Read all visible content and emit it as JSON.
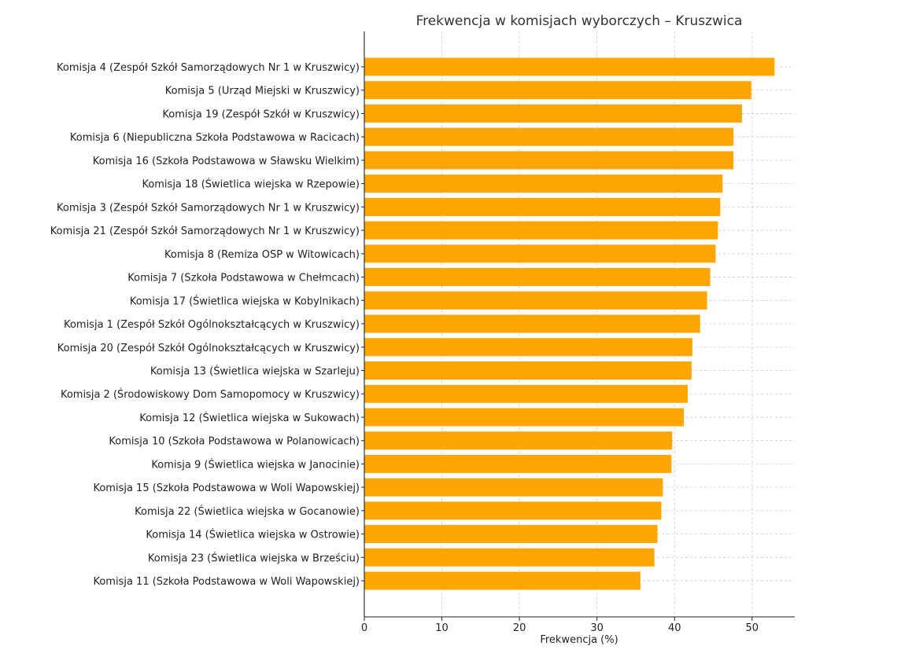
{
  "chart_data": {
    "type": "bar",
    "orientation": "horizontal",
    "title": "Frekwencja w komisjach wyborczych – Kruszwica",
    "xlabel": "Frekwencja (%)",
    "ylabel": "",
    "xlim": [
      0,
      55.5
    ],
    "xticks": [
      0,
      10,
      20,
      30,
      40,
      50
    ],
    "grid": true,
    "bar_color": "#FFA500",
    "categories": [
      "Komisja 4 (Zespół Szkół Samorządowych Nr 1 w Kruszwicy)",
      "Komisja 5 (Urząd Miejski w Kruszwicy)",
      "Komisja 19 (Zespół Szkół w Kruszwicy)",
      "Komisja 6 (Niepubliczna Szkoła Podstawowa w Racicach)",
      "Komisja 16 (Szkoła Podstawowa w Sławsku Wielkim)",
      "Komisja 18 (Świetlica wiejska w Rzepowie)",
      "Komisja 3 (Zespół Szkół Samorządowych Nr 1 w Kruszwicy)",
      "Komisja 21 (Zespół Szkół Samorządowych Nr 1 w Kruszwicy)",
      "Komisja 8 (Remiza OSP w Witowicach)",
      "Komisja 7 (Szkoła Podstawowa w Chełmcach)",
      "Komisja 17 (Świetlica wiejska w Kobylnikach)",
      "Komisja 1 (Zespół Szkół Ogólnokształcących w Kruszwicy)",
      "Komisja 20 (Zespół Szkół Ogólnokształcących w Kruszwicy)",
      "Komisja 13 (Świetlica wiejska w Szarleju)",
      "Komisja 2 (Środowiskowy Dom Samopomocy w Kruszwicy)",
      "Komisja 12 (Świetlica wiejska w Sukowach)",
      "Komisja 10 (Szkoła Podstawowa w Polanowicach)",
      "Komisja 9 (Świetlica wiejska w Janocinie)",
      "Komisja 15 (Szkoła Podstawowa w Woli Wapowskiej)",
      "Komisja 22 (Świetlica wiejska w Gocanowie)",
      "Komisja 14 (Świetlica wiejska w Ostrowie)",
      "Komisja 23 (Świetlica wiejska w Brześciu)",
      "Komisja 11 (Szkoła Podstawowa w Woli Wapowskiej)"
    ],
    "values": [
      52.9,
      49.9,
      48.7,
      47.6,
      47.6,
      46.2,
      45.9,
      45.6,
      45.3,
      44.6,
      44.2,
      43.3,
      42.3,
      42.2,
      41.7,
      41.2,
      39.7,
      39.6,
      38.5,
      38.3,
      37.8,
      37.4,
      35.6
    ]
  }
}
